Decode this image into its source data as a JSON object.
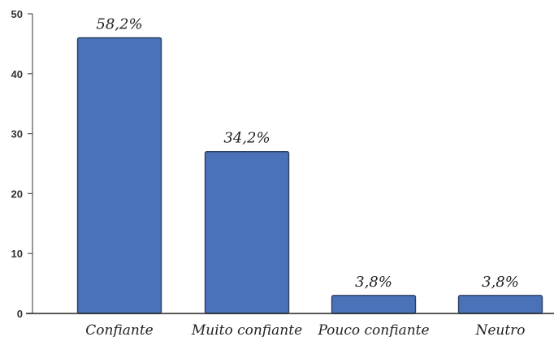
{
  "chart_data": {
    "type": "bar",
    "categories": [
      "Confiante",
      "Muito confiante",
      "Pouco confiante",
      "Neutro"
    ],
    "values": [
      46,
      27,
      3,
      3
    ],
    "data_labels": [
      "58,2%",
      "34,2%",
      "3,8%",
      "3,8%"
    ],
    "title": "",
    "xlabel": "",
    "ylabel": "",
    "ylim": [
      0,
      50
    ],
    "yticks": [
      "0",
      "10",
      "20",
      "30",
      "40",
      "50"
    ],
    "grid": false,
    "legend": "none",
    "bar_color": "#4a72b8",
    "bar_edge_color": "#2b3f63"
  }
}
